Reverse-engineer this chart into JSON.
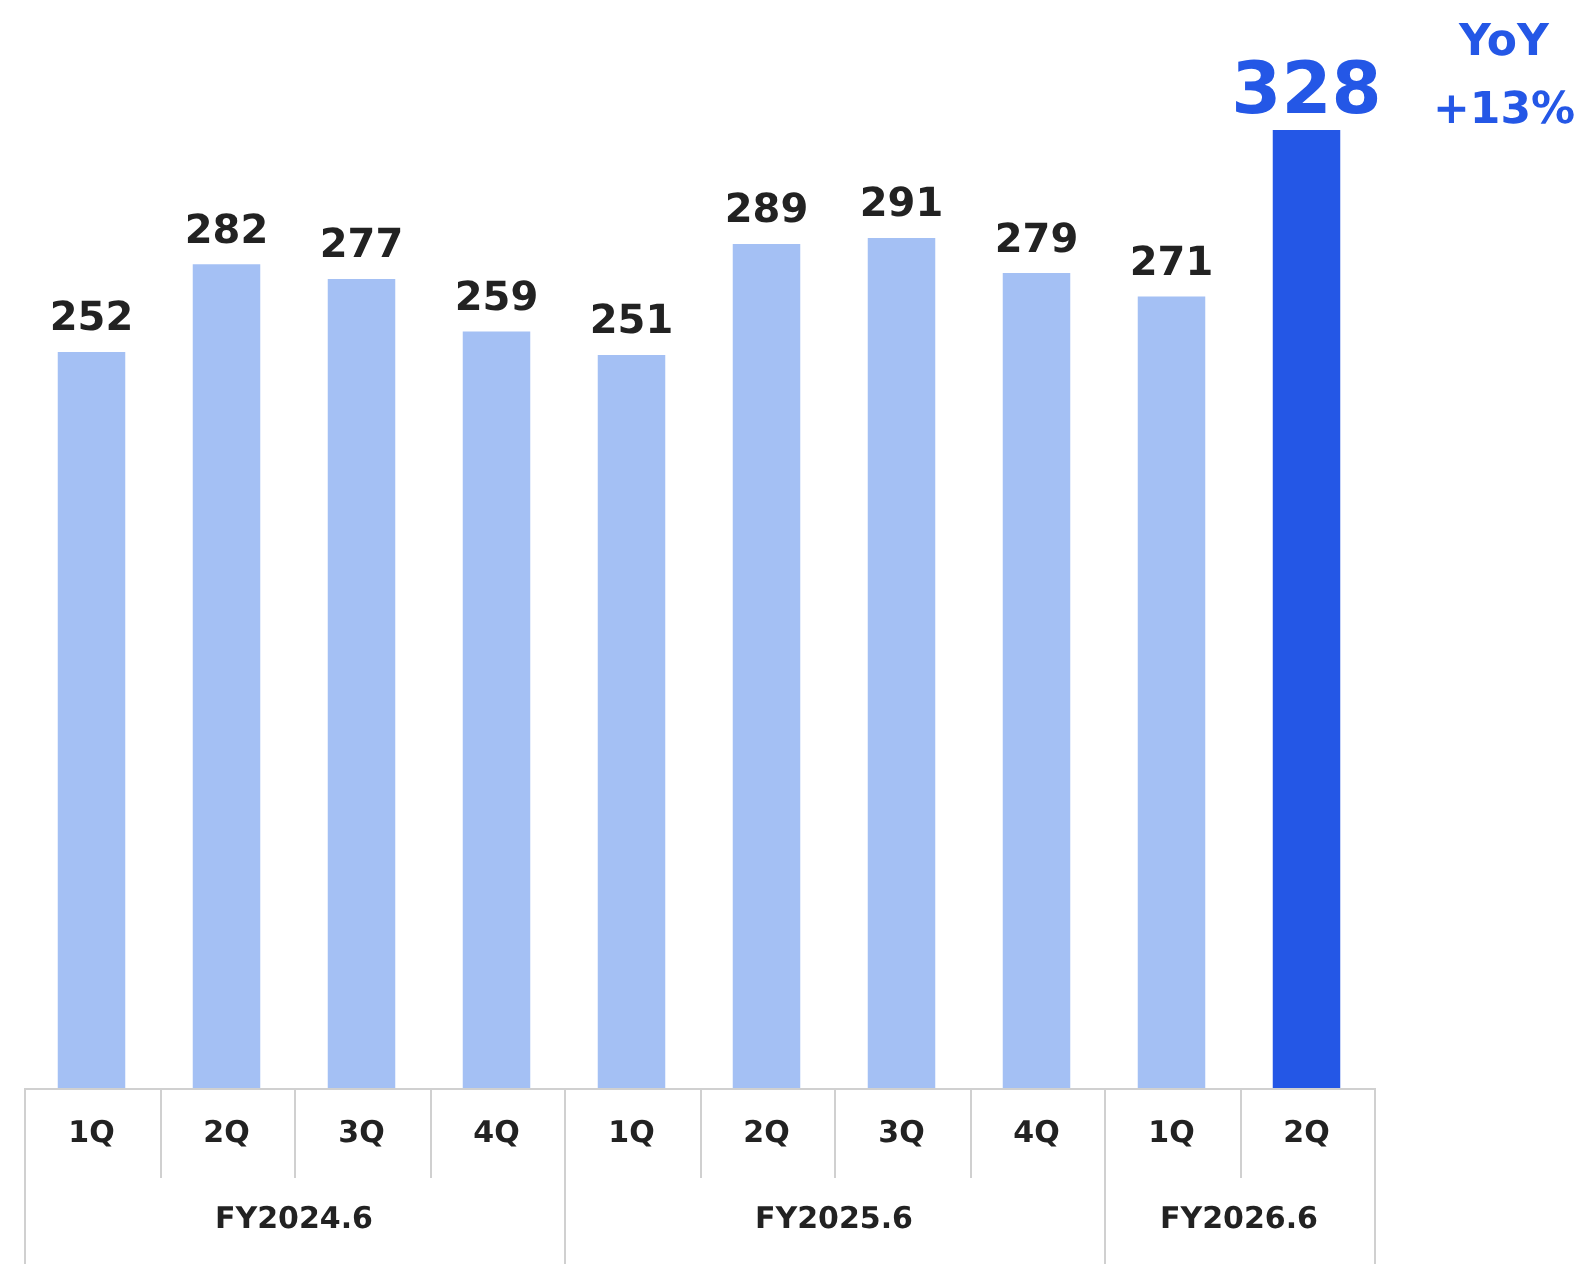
{
  "chart_data": {
    "type": "bar",
    "categories": [
      "1Q",
      "2Q",
      "3Q",
      "4Q",
      "1Q",
      "2Q",
      "3Q",
      "4Q",
      "1Q",
      "2Q"
    ],
    "values": [
      252,
      282,
      277,
      259,
      251,
      289,
      291,
      279,
      271,
      328
    ],
    "colors": [
      "#a4c0f4",
      "#a4c0f4",
      "#a4c0f4",
      "#a4c0f4",
      "#a4c0f4",
      "#a4c0f4",
      "#a4c0f4",
      "#a4c0f4",
      "#a4c0f4",
      "#2457e6"
    ],
    "data_labels": true,
    "grid": false,
    "legend": false,
    "annotations": [
      "FY2024.6",
      "FY2025.6",
      "FY2026.6",
      "YoY\n+13%"
    ]
  }
}
